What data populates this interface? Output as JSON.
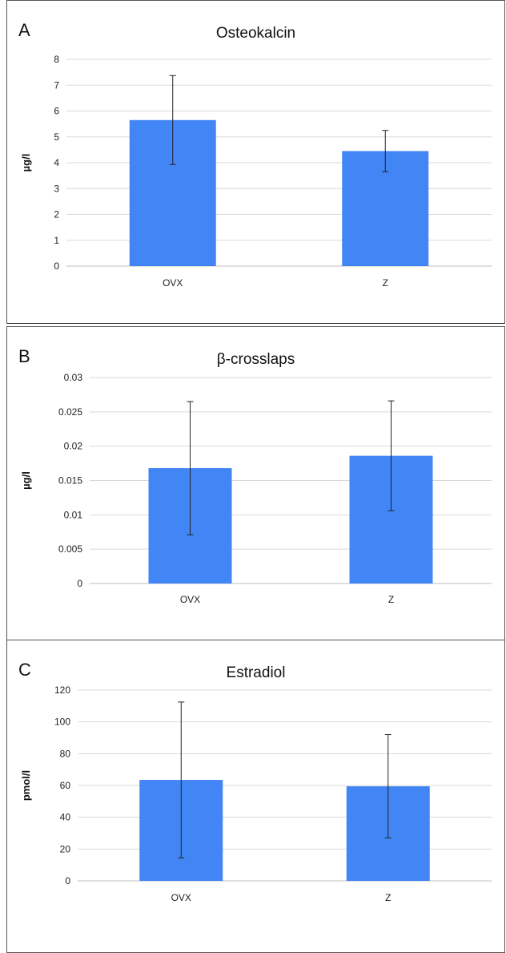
{
  "colors": {
    "bar": "#4285f4",
    "grid": "#d9d9d9",
    "axis": "#bfbfbf",
    "error": "#222222"
  },
  "chart_data": [
    {
      "type": "bar",
      "panel": "A",
      "title": "Osteokalcin",
      "ylabel": "µg/l",
      "xlabel": "",
      "categories": [
        "OVX",
        "Z"
      ],
      "values": [
        5.65,
        4.45
      ],
      "errors": [
        1.72,
        0.8
      ],
      "ylim": [
        0,
        8
      ],
      "yticks": [
        0,
        1,
        2,
        3,
        4,
        5,
        6,
        7,
        8
      ],
      "ytick_labels": [
        "0",
        "1",
        "2",
        "3",
        "4",
        "5",
        "6",
        "7",
        "8"
      ],
      "grid": true
    },
    {
      "type": "bar",
      "panel": "B",
      "title": "β-crosslaps",
      "ylabel": "µg/l",
      "xlabel": "",
      "categories": [
        "OVX",
        "Z"
      ],
      "values": [
        0.0168,
        0.0186
      ],
      "errors": [
        0.0097,
        0.008
      ],
      "ylim": [
        0,
        0.03
      ],
      "yticks": [
        0,
        0.005,
        0.01,
        0.015,
        0.02,
        0.025,
        0.03
      ],
      "ytick_labels": [
        "0",
        "0.005",
        "0.01",
        "0.015",
        "0.02",
        "0.025",
        "0.03"
      ],
      "grid": true
    },
    {
      "type": "bar",
      "panel": "C",
      "title": "Estradiol",
      "ylabel": "pmol/l",
      "xlabel": "",
      "categories": [
        "OVX",
        "Z"
      ],
      "values": [
        63.5,
        59.5
      ],
      "errors": [
        49,
        32.5
      ],
      "ylim": [
        0,
        120
      ],
      "yticks": [
        0,
        20,
        40,
        60,
        80,
        100,
        120
      ],
      "ytick_labels": [
        "0",
        "20",
        "40",
        "60",
        "80",
        "100",
        "120"
      ],
      "grid": true
    }
  ]
}
